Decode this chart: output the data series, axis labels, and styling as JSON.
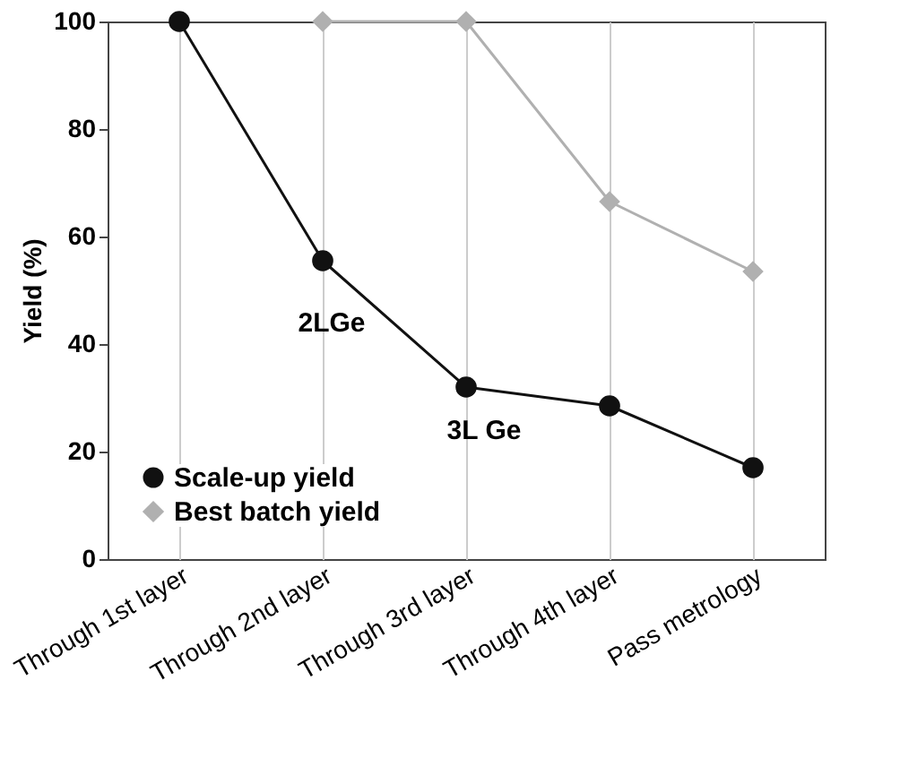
{
  "chart_data": {
    "type": "line",
    "ylabel": "Yield (%)",
    "categories": [
      "Through 1st layer",
      "Through 2nd layer",
      "Through 3rd layer",
      "Through 4th layer",
      "Pass metrology"
    ],
    "series": [
      {
        "name": "Scale-up yield",
        "color": "#111111",
        "values": [
          100,
          55.5,
          32,
          28.5,
          17
        ],
        "marker": "circle"
      },
      {
        "name": "Best batch yield",
        "color": "#b0b0b0",
        "values": [
          null,
          100,
          100,
          66.5,
          53.5
        ],
        "marker": "diamond"
      }
    ],
    "ylim": [
      0,
      100
    ],
    "yticks": [
      0,
      20,
      40,
      60,
      80,
      100
    ],
    "grid": "x",
    "legend": "bottom left",
    "line_style": "solid",
    "annotations": [
      "2LGe",
      "3L Ge"
    ]
  }
}
